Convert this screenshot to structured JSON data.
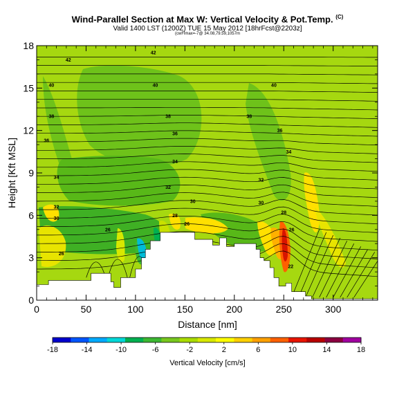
{
  "chart_data": {
    "type": "heatmap",
    "title": "Wind-Parallel Section at Max W: Vertical Velocity & Pot.Temp.",
    "title_mark": "(C)",
    "subtitle": "Valid 1400 LST (1200Z) TUE 15 May 2012 [18hrFcst@2203z]",
    "subtitle2": "(cwFlmax=-7@ 34.08,79.59,1057m",
    "xlabel": "Distance [nm]",
    "ylabel": "Height [Kft MSL]",
    "xlim": [
      0,
      345
    ],
    "ylim": [
      0,
      18
    ],
    "xticks": [
      0,
      50,
      100,
      150,
      200,
      250,
      300
    ],
    "yticks": [
      0,
      3,
      6,
      9,
      12,
      15,
      18
    ],
    "colorbar": {
      "label": "Vertical Velocity [cm/s]",
      "ticks": [
        -18,
        -14,
        -10,
        -6,
        -2,
        2,
        6,
        10,
        14,
        18
      ],
      "colors": [
        "#0000cd",
        "#0055ff",
        "#00aaff",
        "#00d8d8",
        "#00b050",
        "#3cb832",
        "#78c81e",
        "#aadc00",
        "#d8e800",
        "#ffff00",
        "#ffd000",
        "#ffa000",
        "#ff6000",
        "#e81400",
        "#b80000",
        "#8b0040",
        "#a000a0"
      ]
    },
    "contour_labels": [
      {
        "x": 32,
        "y": 17.0,
        "text": "42"
      },
      {
        "x": 118,
        "y": 17.5,
        "text": "42"
      },
      {
        "x": 15,
        "y": 15.2,
        "text": "40"
      },
      {
        "x": 120,
        "y": 15.2,
        "text": "40"
      },
      {
        "x": 240,
        "y": 15.2,
        "text": "40"
      },
      {
        "x": 15,
        "y": 13.0,
        "text": "38"
      },
      {
        "x": 133,
        "y": 13.0,
        "text": "38"
      },
      {
        "x": 215,
        "y": 13.0,
        "text": "38"
      },
      {
        "x": 10,
        "y": 11.3,
        "text": "36"
      },
      {
        "x": 140,
        "y": 11.8,
        "text": "36"
      },
      {
        "x": 246,
        "y": 12.0,
        "text": "36"
      },
      {
        "x": 140,
        "y": 9.8,
        "text": "34"
      },
      {
        "x": 255,
        "y": 10.5,
        "text": "34"
      },
      {
        "x": 20,
        "y": 8.7,
        "text": "34"
      },
      {
        "x": 133,
        "y": 8.0,
        "text": "32"
      },
      {
        "x": 227,
        "y": 8.5,
        "text": "32"
      },
      {
        "x": 20,
        "y": 6.6,
        "text": "32"
      },
      {
        "x": 158,
        "y": 7.0,
        "text": "30"
      },
      {
        "x": 227,
        "y": 6.9,
        "text": "30"
      },
      {
        "x": 20,
        "y": 5.8,
        "text": "30"
      },
      {
        "x": 140,
        "y": 6.0,
        "text": "28"
      },
      {
        "x": 152,
        "y": 5.4,
        "text": "26"
      },
      {
        "x": 250,
        "y": 6.2,
        "text": "28"
      },
      {
        "x": 72,
        "y": 5.0,
        "text": "26"
      },
      {
        "x": 258,
        "y": 5.0,
        "text": "26"
      },
      {
        "x": 25,
        "y": 3.3,
        "text": "26"
      },
      {
        "x": 257,
        "y": 2.4,
        "text": "22"
      }
    ],
    "terrain_top_kft": [
      [
        0,
        1.1
      ],
      [
        12,
        1.1
      ],
      [
        12,
        1.4
      ],
      [
        55,
        1.4
      ],
      [
        55,
        1.9
      ],
      [
        75,
        1.9
      ],
      [
        75,
        1.3
      ],
      [
        78,
        1.3
      ],
      [
        78,
        0.9
      ],
      [
        85,
        0.9
      ],
      [
        85,
        1.6
      ],
      [
        100,
        1.6
      ],
      [
        100,
        2.2
      ],
      [
        106,
        2.2
      ],
      [
        106,
        3.0
      ],
      [
        110,
        3.0
      ],
      [
        110,
        3.6
      ],
      [
        115,
        3.6
      ],
      [
        115,
        4.2
      ],
      [
        125,
        4.2
      ],
      [
        125,
        4.8
      ],
      [
        160,
        4.8
      ],
      [
        160,
        4.3
      ],
      [
        178,
        4.3
      ],
      [
        178,
        3.9
      ],
      [
        185,
        3.9
      ],
      [
        185,
        4.4
      ],
      [
        192,
        4.4
      ],
      [
        192,
        3.8
      ],
      [
        200,
        3.8
      ],
      [
        200,
        4.0
      ],
      [
        222,
        4.0
      ],
      [
        222,
        3.6
      ],
      [
        226,
        3.6
      ],
      [
        226,
        3.0
      ],
      [
        230,
        3.0
      ],
      [
        230,
        2.8
      ],
      [
        236,
        2.8
      ],
      [
        236,
        2.3
      ],
      [
        240,
        2.3
      ],
      [
        240,
        1.6
      ],
      [
        245,
        1.6
      ],
      [
        245,
        1.0
      ],
      [
        252,
        1.0
      ],
      [
        252,
        1.2
      ],
      [
        258,
        1.2
      ],
      [
        258,
        0.6
      ],
      [
        272,
        0.6
      ],
      [
        272,
        0.3
      ],
      [
        278,
        0.3
      ],
      [
        278,
        0.1
      ],
      [
        300,
        0.1
      ],
      [
        345,
        0.1
      ]
    ]
  }
}
